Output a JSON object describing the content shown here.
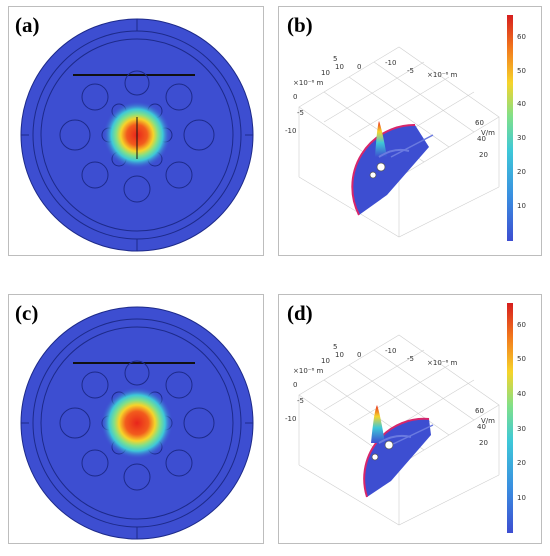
{
  "panels": [
    {
      "id": "a",
      "label": "(a)"
    },
    {
      "id": "b",
      "label": "(b)",
      "axis_labels": {
        "x_unit": "×10⁻⁶ m",
        "y_unit": "×10⁻⁶ m",
        "z_unit": "V/m"
      },
      "x_ticks": [
        "-10",
        "-5",
        "0",
        "5",
        "10"
      ],
      "y_ticks": [
        "-10",
        "-5",
        "0",
        "5",
        "10"
      ],
      "z_ticks": [
        "20",
        "40",
        "60"
      ],
      "colorbar_ticks": [
        "60",
        "50",
        "40",
        "30",
        "20",
        "10"
      ]
    },
    {
      "id": "c",
      "label": "(c)"
    },
    {
      "id": "d",
      "label": "(d)",
      "axis_labels": {
        "x_unit": "×10⁻⁶ m",
        "y_unit": "×10⁻⁶ m",
        "z_unit": "V/m"
      },
      "x_ticks": [
        "-10",
        "-5",
        "0",
        "5",
        "10"
      ],
      "y_ticks": [
        "-10",
        "-5",
        "0",
        "5",
        "10"
      ],
      "z_ticks": [
        "20",
        "40",
        "60"
      ],
      "colorbar_ticks": [
        "60",
        "50",
        "40",
        "30",
        "20",
        "10"
      ]
    }
  ],
  "colors": {
    "field_background": "#3d4ed1",
    "hot": "#e8251b",
    "warm": "#f6d42a",
    "cool": "#3ec8d8",
    "rim": "#d7266b"
  }
}
